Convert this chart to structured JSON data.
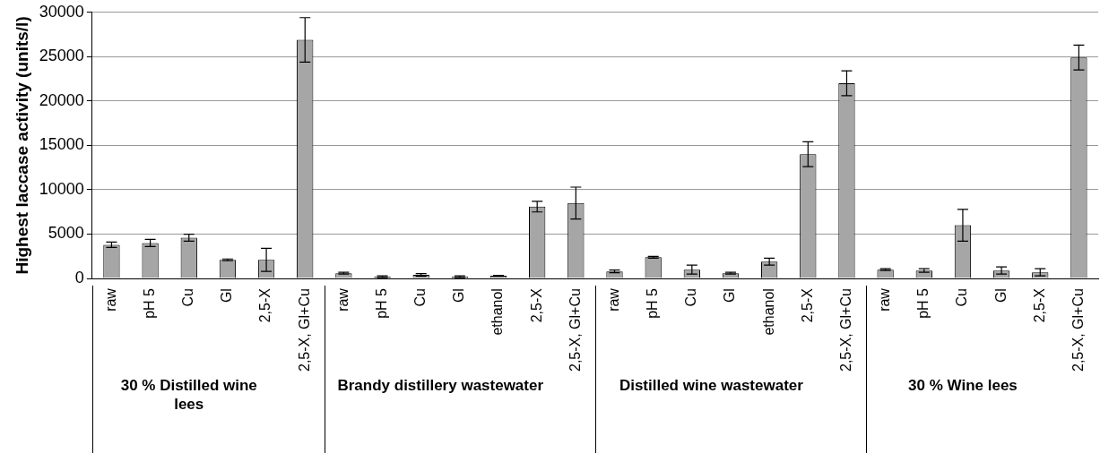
{
  "chart_data": {
    "type": "bar",
    "ylabel": "Highest laccase activity (units/l)",
    "categories": [
      "raw",
      "pH 5",
      "Cu",
      "Gl",
      "2,5-X",
      "2,5-X, Gl+Cu",
      "raw",
      "pH 5",
      "Cu",
      "Gl",
      "ethanol",
      "2,5-X",
      "2,5-X, Gl+Cu",
      "raw",
      "pH 5",
      "Cu",
      "Gl",
      "ethanol",
      "2,5-X",
      "2,5-X, Gl+Cu",
      "raw",
      "pH 5",
      "Cu",
      "Gl",
      "2,5-X",
      "2,5-X, Gl+Cu"
    ],
    "values": [
      3800,
      4000,
      4600,
      2100,
      2100,
      26900,
      600,
      200,
      400,
      200,
      300,
      8100,
      8500,
      800,
      2400,
      1000,
      600,
      1900,
      14000,
      22000,
      1000,
      900,
      6000,
      900,
      700,
      24900
    ],
    "errors": [
      300,
      400,
      400,
      100,
      1300,
      2500,
      100,
      100,
      150,
      100,
      50,
      600,
      1800,
      150,
      100,
      500,
      100,
      400,
      1400,
      1400,
      100,
      200,
      1800,
      400,
      400,
      1400
    ],
    "color": "#a6a6a6",
    "ylim": [
      0,
      30000
    ],
    "yticks": [
      0,
      5000,
      10000,
      15000,
      20000,
      25000,
      30000
    ],
    "grid": "y",
    "annotations": [
      "30 % Distilled wine lees",
      "Brandy distillery wastewater",
      "Distilled wine wastewater",
      "30 % Wine lees"
    ]
  }
}
